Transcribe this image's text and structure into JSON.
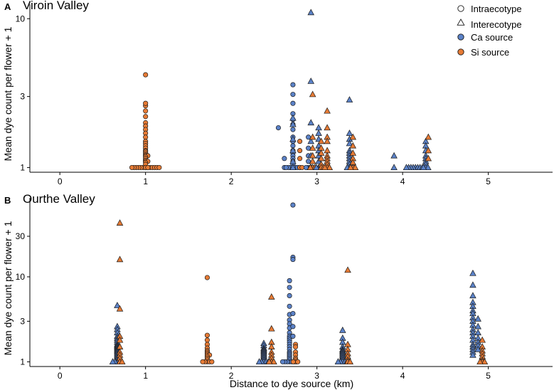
{
  "colors": {
    "ca": "#5b82c8",
    "si": "#e77b35",
    "stroke": "#1a1a1a",
    "axis": "#000000"
  },
  "legend": {
    "items": [
      {
        "label": "Intraecotype",
        "shape": "circle",
        "fill": "#ffffff"
      },
      {
        "label": "Interecotype",
        "shape": "triangle",
        "fill": "#ffffff"
      },
      {
        "label": "Ca source",
        "shape": "circle",
        "fill": "#5b82c8"
      },
      {
        "label": "Si source",
        "shape": "circle",
        "fill": "#e77b35"
      }
    ]
  },
  "chart_data": [
    {
      "type": "scatter",
      "panel": "A",
      "title": "Viroin Valley",
      "xlabel": "",
      "ylabel": "Mean dye count per flower + 1",
      "y_scale": "log",
      "xlim": [
        -0.35,
        5.75
      ],
      "ylim": [
        0.93,
        12.5
      ],
      "x_ticks": [
        0,
        1,
        2,
        3,
        4,
        5
      ],
      "y_ticks": [
        1,
        3,
        10
      ],
      "groups": [
        {
          "x": 1.0,
          "source": "Si",
          "shape": "circle",
          "values": [
            4.2,
            2.6,
            2.7,
            2.4,
            2.2,
            2.0,
            1.9,
            1.8,
            1.7,
            1.6,
            1.5,
            1.45,
            1.4,
            1.35,
            1.3,
            1.28,
            1.25,
            1.22,
            1.2,
            1.2,
            1.18,
            1.15,
            1.12,
            1.1,
            1.1,
            1.08,
            1.05,
            1.0,
            1.0,
            1.0,
            1.0,
            1.0,
            1.0,
            1.0,
            1.0,
            1.0,
            1.0,
            1.0,
            1.0,
            1.0,
            1.0,
            1.0
          ]
        },
        {
          "x": 2.55,
          "source": "Ca",
          "shape": "circle",
          "values": [
            1.85
          ]
        },
        {
          "x": 2.62,
          "source": "Ca",
          "shape": "circle",
          "values": [
            1.15,
            1.0
          ]
        },
        {
          "x": 2.72,
          "source": "Ca",
          "shape": "circle",
          "values": [
            3.6,
            3.1,
            2.7,
            2.3,
            2.1,
            1.95,
            1.8,
            1.6,
            1.5,
            1.4,
            1.3,
            1.25,
            1.2,
            1.15,
            1.1,
            1.05,
            1.0,
            1.0,
            1.0,
            1.0,
            1.0,
            1.0,
            1.0
          ]
        },
        {
          "x": 2.72,
          "source": "Ca",
          "shape": "triangle",
          "values": [
            2.15,
            1.95,
            1.55,
            1.3,
            1.1,
            1.0
          ]
        },
        {
          "x": 2.8,
          "source": "Si",
          "shape": "circle",
          "values": [
            1.5,
            1.3,
            1.15,
            1.0,
            1.0
          ]
        },
        {
          "x": 2.9,
          "source": "Ca",
          "shape": "circle",
          "values": [
            1.6,
            1.35,
            1.2,
            1.1,
            1.0,
            1.0,
            1.0,
            1.0
          ]
        },
        {
          "x": 2.93,
          "source": "Ca",
          "shape": "triangle",
          "values": [
            11.0,
            3.8,
            2.0,
            1.5,
            1.2,
            1.0
          ]
        },
        {
          "x": 2.95,
          "source": "Si",
          "shape": "triangle",
          "values": [
            3.1,
            1.6,
            1.35,
            1.2,
            1.1,
            1.0,
            1.0,
            1.0
          ]
        },
        {
          "x": 3.02,
          "source": "Ca",
          "shape": "triangle",
          "values": [
            1.85,
            1.7,
            1.55,
            1.4,
            1.3,
            1.2,
            1.1,
            1.0,
            1.0,
            1.0,
            1.0
          ]
        },
        {
          "x": 3.05,
          "source": "Si",
          "shape": "triangle",
          "values": [
            1.5,
            1.35,
            1.25,
            1.15,
            1.05,
            1.0,
            1.0
          ]
        },
        {
          "x": 3.12,
          "source": "Si",
          "shape": "triangle",
          "values": [
            2.4,
            1.85,
            1.6,
            1.5,
            1.3,
            1.2,
            1.15,
            1.1,
            1.05,
            1.0,
            1.0,
            1.0
          ]
        },
        {
          "x": 3.38,
          "source": "Ca",
          "shape": "triangle",
          "values": [
            2.85,
            1.7,
            1.55,
            1.45,
            1.3,
            1.25,
            1.2,
            1.15,
            1.1,
            1.05,
            1.0,
            1.0,
            1.0,
            1.0
          ]
        },
        {
          "x": 3.42,
          "source": "Si",
          "shape": "triangle",
          "values": [
            1.6,
            1.4,
            1.25,
            1.15,
            1.08,
            1.0,
            1.0,
            1.0
          ]
        },
        {
          "x": 3.9,
          "source": "Ca",
          "shape": "triangle",
          "values": [
            1.2,
            1.0
          ]
        },
        {
          "x": 4.15,
          "source": "Ca",
          "shape": "triangle",
          "values": [
            1.0,
            1.0,
            1.0,
            1.0,
            1.0,
            1.0,
            1.0,
            1.0,
            1.0,
            1.0
          ]
        },
        {
          "x": 4.27,
          "source": "Ca",
          "shape": "triangle",
          "values": [
            1.5,
            1.4,
            1.3,
            1.2,
            1.15,
            1.1,
            1.05,
            1.0,
            1.0,
            1.0
          ]
        },
        {
          "x": 4.3,
          "source": "Si",
          "shape": "triangle",
          "values": [
            1.6,
            1.3,
            1.15
          ]
        }
      ]
    },
    {
      "type": "scatter",
      "panel": "B",
      "title": "Ourthe Valley",
      "xlabel": "Distance to dye source (km)",
      "ylabel": "Mean dye count per flower + 1",
      "y_scale": "log",
      "xlim": [
        -0.35,
        5.75
      ],
      "ylim": [
        0.88,
        85
      ],
      "x_ticks": [
        0,
        1,
        2,
        3,
        4,
        5
      ],
      "y_ticks": [
        1,
        3,
        10,
        30
      ],
      "groups": [
        {
          "x": 0.67,
          "source": "Ca",
          "shape": "triangle",
          "values": [
            4.6,
            2.6,
            2.4,
            2.2,
            2.0,
            1.9,
            1.8,
            1.7,
            1.6,
            1.55,
            1.5,
            1.45,
            1.4,
            1.35,
            1.3,
            1.25,
            1.2,
            1.15,
            1.1,
            1.05,
            1.0,
            1.0,
            1.0,
            1.0,
            1.0
          ]
        },
        {
          "x": 0.7,
          "source": "Si",
          "shape": "triangle",
          "values": [
            43.0,
            16.0,
            4.2,
            2.0,
            1.8,
            1.5,
            1.3,
            1.2,
            1.1,
            1.0,
            1.0
          ]
        },
        {
          "x": 1.72,
          "source": "Si",
          "shape": "circle",
          "values": [
            9.8,
            2.05,
            1.8,
            1.6,
            1.45,
            1.35,
            1.3,
            1.25,
            1.2,
            1.2,
            1.15,
            1.1,
            1.05,
            1.0,
            1.0,
            1.0,
            1.0,
            1.0
          ]
        },
        {
          "x": 2.38,
          "source": "Ca",
          "shape": "triangle",
          "values": [
            1.65,
            1.55,
            1.45,
            1.4,
            1.35,
            1.3,
            1.25,
            1.2,
            1.15,
            1.1,
            1.05,
            1.0,
            1.0,
            1.0,
            1.0,
            1.0,
            1.0
          ]
        },
        {
          "x": 2.47,
          "source": "Si",
          "shape": "triangle",
          "values": [
            5.8,
            2.45,
            1.7,
            1.5,
            1.3,
            1.2,
            1.1,
            1.0,
            1.0,
            1.0
          ]
        },
        {
          "x": 2.68,
          "source": "Ca",
          "shape": "circle",
          "values": [
            9.0,
            7.5,
            6.0,
            4.5,
            3.6,
            3.1,
            2.8,
            2.5,
            2.2,
            2.0,
            1.9,
            1.8,
            1.7,
            1.6,
            1.5,
            1.4,
            1.3,
            1.25,
            1.2,
            1.15,
            1.1,
            1.05,
            1.0,
            1.0,
            1.0,
            1.0,
            1.0,
            1.0,
            1.0
          ]
        },
        {
          "x": 2.72,
          "source": "Ca",
          "shape": "circle",
          "values": [
            70.0,
            17.0,
            16.0,
            3.7,
            2.6,
            2.0
          ]
        },
        {
          "x": 2.75,
          "source": "Si",
          "shape": "circle",
          "values": [
            1.6,
            1.5,
            1.3,
            1.2,
            1.1,
            1.05,
            1.0,
            1.0,
            1.0
          ]
        },
        {
          "x": 3.3,
          "source": "Ca",
          "shape": "triangle",
          "values": [
            2.35,
            1.9,
            1.7,
            1.5,
            1.4,
            1.35,
            1.3,
            1.25,
            1.2,
            1.15,
            1.1,
            1.05,
            1.0,
            1.0,
            1.0,
            1.0,
            1.0
          ]
        },
        {
          "x": 3.36,
          "source": "Si",
          "shape": "triangle",
          "values": [
            12.0,
            1.6,
            1.4,
            1.25,
            1.15,
            1.05,
            1.0,
            1.0
          ]
        },
        {
          "x": 4.82,
          "source": "Ca",
          "shape": "triangle",
          "values": [
            11.0,
            8.0,
            6.0,
            5.0,
            4.5,
            4.0,
            3.7,
            3.3,
            3.0,
            2.7,
            2.4,
            2.2,
            2.0,
            1.8,
            1.6,
            1.5,
            1.4,
            1.3,
            1.2
          ]
        },
        {
          "x": 4.88,
          "source": "Ca",
          "shape": "triangle",
          "values": [
            3.2,
            2.6,
            2.2,
            1.9,
            1.7,
            1.55,
            1.4
          ]
        },
        {
          "x": 4.93,
          "source": "Si",
          "shape": "triangle",
          "values": [
            1.8,
            1.5,
            1.35,
            1.25,
            1.15,
            1.05,
            1.0,
            1.0,
            1.0
          ]
        }
      ]
    }
  ]
}
